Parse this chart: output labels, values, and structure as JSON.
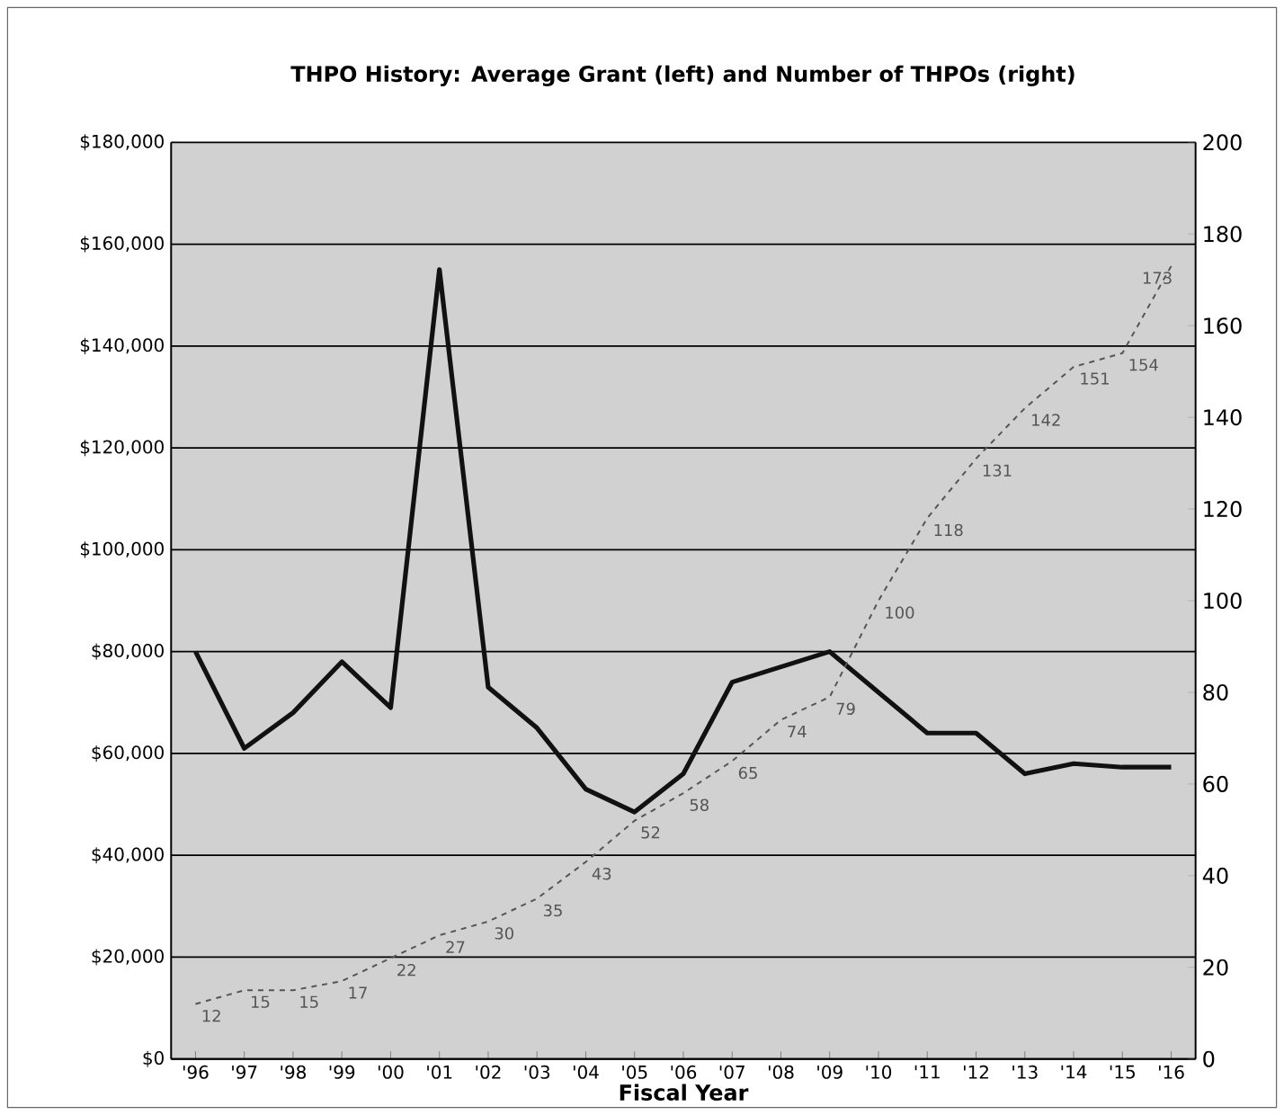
{
  "chart_data": {
    "type": "line",
    "title": "THPO History: Average Grant (left) and Number of THPOs (right)",
    "xlabel": "Fiscal Year",
    "categories": [
      "'96",
      "'97",
      "'98",
      "'99",
      "'00",
      "'01",
      "'02",
      "'03",
      "'04",
      "'05",
      "'06",
      "'07",
      "'08",
      "'09",
      "'10",
      "'11",
      "'12",
      "'13",
      "'14",
      "'15",
      "'16"
    ],
    "series": [
      {
        "color": "#111111",
        "line_style": "solid",
        "axis": "y",
        "values": [
          80000,
          61000,
          68000,
          78000,
          69000,
          155000,
          73000,
          65000,
          53000,
          48500,
          56000,
          74000,
          77000,
          80000,
          72000,
          64000,
          64000,
          56000,
          58000,
          57300,
          57300
        ]
      },
      {
        "color": "#555555",
        "line_style": "dashed",
        "axis": "y2",
        "data_labels": true,
        "values": [
          12,
          15,
          15,
          17,
          22,
          27,
          30,
          35,
          43,
          52,
          58,
          65,
          74,
          79,
          100,
          118,
          131,
          142,
          151,
          154,
          173
        ]
      }
    ],
    "ylim": [
      0,
      180000
    ],
    "yticks": [
      {
        "value": 0,
        "label": "$0"
      },
      {
        "value": 20000,
        "label": "$20,000"
      },
      {
        "value": 40000,
        "label": "$40,000"
      },
      {
        "value": 60000,
        "label": "$60,000"
      },
      {
        "value": 80000,
        "label": "$80,000"
      },
      {
        "value": 100000,
        "label": "$100,000"
      },
      {
        "value": 120000,
        "label": "$120,000"
      },
      {
        "value": 140000,
        "label": "$140,000"
      },
      {
        "value": 160000,
        "label": "$160,000"
      },
      {
        "value": 180000,
        "label": "$180,000"
      }
    ],
    "y2lim": [
      0,
      200
    ],
    "y2ticks": [
      0,
      20,
      40,
      60,
      80,
      100,
      120,
      140,
      160,
      180,
      200
    ],
    "grid": "y",
    "marker": "none"
  }
}
